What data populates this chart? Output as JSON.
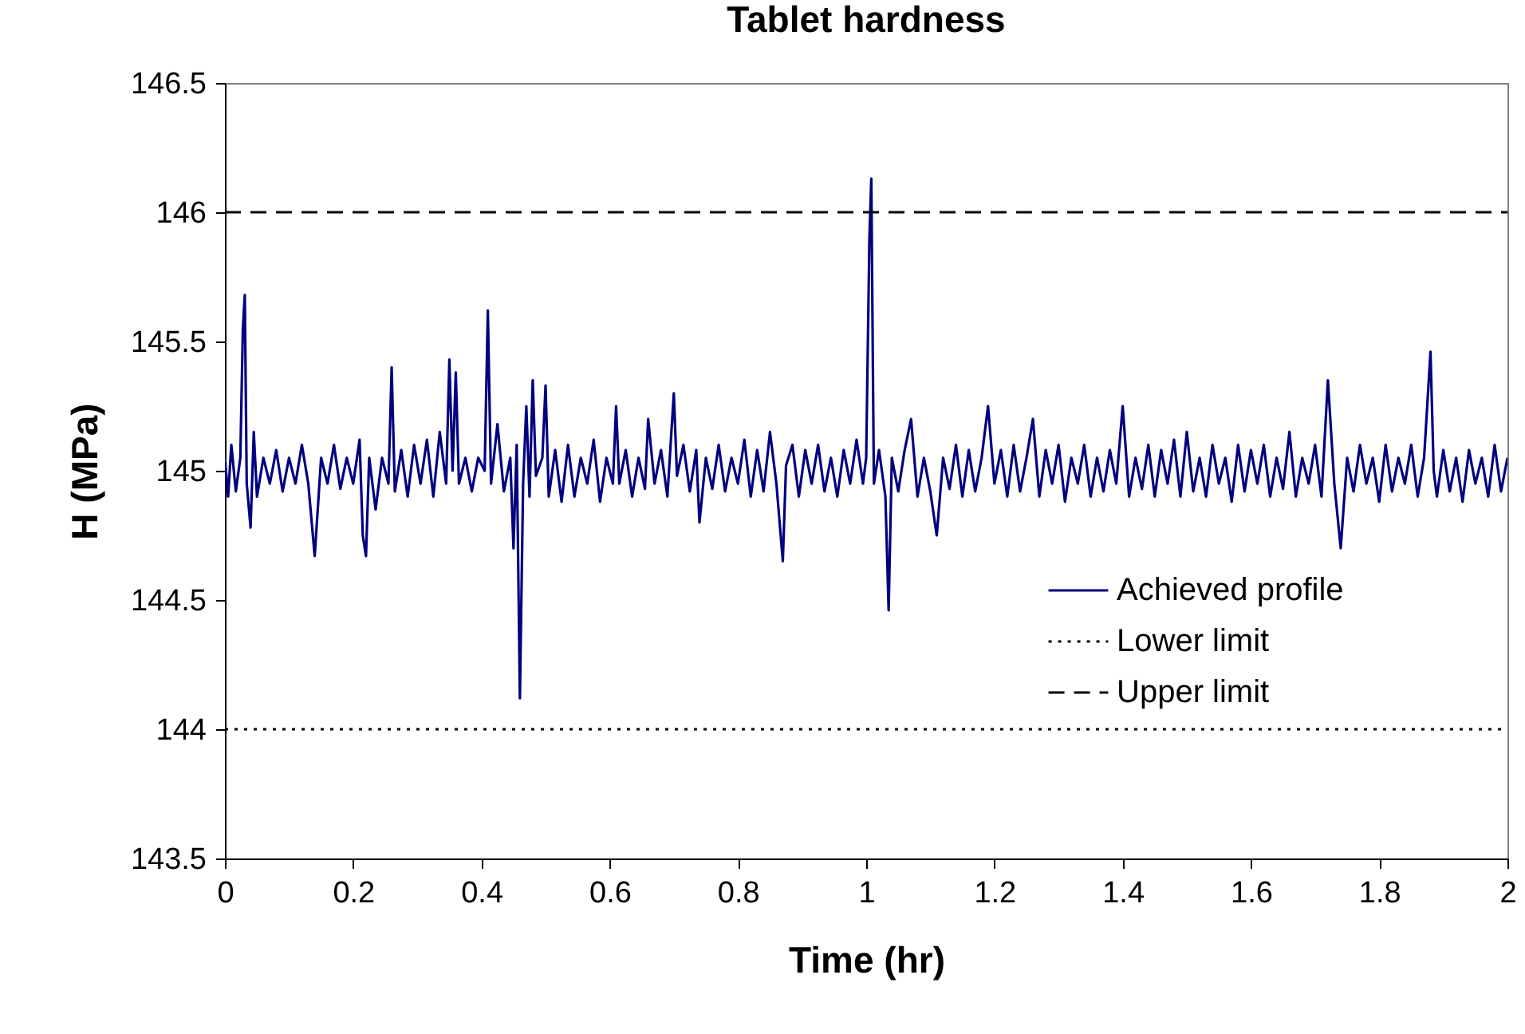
{
  "chart_data": {
    "type": "line",
    "title": "Tablet hardness",
    "xlabel": "Time (hr)",
    "ylabel": "H (MPa)",
    "xlim": [
      0,
      2
    ],
    "xticks": [
      0,
      0.2,
      0.4,
      0.6,
      0.8,
      1,
      1.2,
      1.4,
      1.6,
      1.8,
      2
    ],
    "ylim": [
      143.5,
      146.5
    ],
    "yticks": [
      143.5,
      144,
      144.5,
      145,
      145.5,
      146,
      146.5
    ],
    "grid": false,
    "legend": "right",
    "series": [
      {
        "name": "Achieved profile",
        "color": "#000080",
        "line_style": "solid",
        "x": [
          0,
          0.005,
          0.01,
          0.017,
          0.024,
          0.028,
          0.031,
          0.034,
          0.04,
          0.045,
          0.05,
          0.06,
          0.07,
          0.08,
          0.09,
          0.1,
          0.11,
          0.12,
          0.13,
          0.14,
          0.15,
          0.16,
          0.17,
          0.18,
          0.19,
          0.2,
          0.21,
          0.215,
          0.22,
          0.225,
          0.235,
          0.245,
          0.255,
          0.26,
          0.265,
          0.275,
          0.285,
          0.295,
          0.305,
          0.315,
          0.325,
          0.335,
          0.345,
          0.35,
          0.355,
          0.36,
          0.365,
          0.375,
          0.385,
          0.395,
          0.405,
          0.41,
          0.415,
          0.425,
          0.435,
          0.445,
          0.45,
          0.455,
          0.46,
          0.465,
          0.47,
          0.475,
          0.48,
          0.485,
          0.495,
          0.5,
          0.505,
          0.515,
          0.525,
          0.535,
          0.545,
          0.555,
          0.565,
          0.575,
          0.585,
          0.595,
          0.605,
          0.61,
          0.615,
          0.625,
          0.635,
          0.645,
          0.655,
          0.66,
          0.67,
          0.68,
          0.69,
          0.7,
          0.705,
          0.715,
          0.725,
          0.735,
          0.74,
          0.75,
          0.76,
          0.77,
          0.78,
          0.79,
          0.8,
          0.81,
          0.82,
          0.83,
          0.84,
          0.85,
          0.86,
          0.87,
          0.875,
          0.885,
          0.895,
          0.905,
          0.915,
          0.925,
          0.935,
          0.945,
          0.955,
          0.965,
          0.975,
          0.985,
          0.995,
          1.0,
          1.005,
          1.008,
          1.012,
          1.02,
          1.03,
          1.035,
          1.04,
          1.05,
          1.06,
          1.07,
          1.08,
          1.09,
          1.1,
          1.11,
          1.12,
          1.13,
          1.14,
          1.15,
          1.16,
          1.17,
          1.18,
          1.19,
          1.2,
          1.21,
          1.22,
          1.23,
          1.24,
          1.25,
          1.26,
          1.27,
          1.28,
          1.29,
          1.3,
          1.31,
          1.32,
          1.33,
          1.34,
          1.35,
          1.36,
          1.37,
          1.38,
          1.39,
          1.4,
          1.41,
          1.42,
          1.43,
          1.44,
          1.45,
          1.46,
          1.47,
          1.48,
          1.49,
          1.5,
          1.51,
          1.52,
          1.53,
          1.54,
          1.55,
          1.56,
          1.57,
          1.58,
          1.59,
          1.6,
          1.61,
          1.62,
          1.63,
          1.64,
          1.65,
          1.66,
          1.67,
          1.68,
          1.69,
          1.7,
          1.71,
          1.72,
          1.73,
          1.74,
          1.75,
          1.76,
          1.77,
          1.78,
          1.79,
          1.8,
          1.81,
          1.82,
          1.83,
          1.84,
          1.85,
          1.86,
          1.87,
          1.88,
          1.885,
          1.89,
          1.9,
          1.91,
          1.92,
          1.93,
          1.94,
          1.95,
          1.96,
          1.97,
          1.98,
          1.99,
          2.0
        ],
        "values": [
          145.05,
          144.9,
          145.1,
          144.92,
          145.05,
          145.55,
          145.68,
          144.95,
          144.78,
          145.15,
          144.9,
          145.05,
          144.95,
          145.08,
          144.92,
          145.05,
          144.95,
          145.1,
          144.95,
          144.67,
          145.05,
          144.95,
          145.1,
          144.93,
          145.05,
          144.95,
          145.12,
          144.75,
          144.67,
          145.05,
          144.85,
          145.05,
          144.95,
          145.4,
          144.92,
          145.08,
          144.9,
          145.1,
          144.95,
          145.12,
          144.9,
          145.15,
          144.95,
          145.43,
          145.0,
          145.38,
          144.95,
          145.05,
          144.92,
          145.05,
          145.0,
          145.62,
          144.95,
          145.18,
          144.92,
          145.05,
          144.7,
          145.1,
          144.12,
          144.95,
          145.25,
          144.9,
          145.35,
          144.98,
          145.05,
          145.33,
          144.9,
          145.08,
          144.88,
          145.1,
          144.9,
          145.05,
          144.95,
          145.12,
          144.88,
          145.05,
          144.95,
          145.25,
          144.95,
          145.08,
          144.9,
          145.05,
          144.93,
          145.2,
          144.95,
          145.08,
          144.9,
          145.3,
          144.98,
          145.1,
          144.92,
          145.08,
          144.8,
          145.05,
          144.93,
          145.1,
          144.92,
          145.05,
          144.95,
          145.12,
          144.9,
          145.08,
          144.92,
          145.15,
          144.95,
          144.65,
          145.02,
          145.1,
          144.9,
          145.08,
          144.95,
          145.1,
          144.92,
          145.05,
          144.9,
          145.08,
          144.95,
          145.12,
          144.95,
          145.05,
          145.9,
          146.13,
          144.95,
          145.08,
          144.9,
          144.46,
          145.05,
          144.92,
          145.08,
          145.2,
          144.9,
          145.05,
          144.92,
          144.75,
          145.05,
          144.93,
          145.1,
          144.9,
          145.08,
          144.92,
          145.05,
          145.25,
          144.95,
          145.08,
          144.9,
          145.1,
          144.92,
          145.05,
          145.2,
          144.9,
          145.08,
          144.95,
          145.1,
          144.88,
          145.05,
          144.95,
          145.1,
          144.9,
          145.05,
          144.92,
          145.08,
          144.95,
          145.25,
          144.9,
          145.05,
          144.93,
          145.1,
          144.9,
          145.08,
          144.95,
          145.12,
          144.9,
          145.15,
          144.92,
          145.05,
          144.9,
          145.1,
          144.95,
          145.05,
          144.88,
          145.1,
          144.92,
          145.08,
          144.95,
          145.1,
          144.9,
          145.05,
          144.93,
          145.15,
          144.9,
          145.05,
          144.95,
          145.1,
          144.9,
          145.35,
          144.95,
          144.7,
          145.05,
          144.92,
          145.1,
          144.95,
          145.05,
          144.88,
          145.1,
          144.92,
          145.05,
          144.95,
          145.1,
          144.9,
          145.05,
          145.46,
          145.0,
          144.9,
          145.08,
          144.92,
          145.05,
          144.88,
          145.08,
          144.95,
          145.05,
          144.9,
          145.1,
          144.92,
          145.05
        ]
      },
      {
        "name": "Lower limit",
        "color": "#000000",
        "line_style": "dotted",
        "x": [
          0,
          2
        ],
        "values": [
          144,
          144
        ]
      },
      {
        "name": "Upper limit",
        "color": "#000000",
        "line_style": "dashed",
        "x": [
          0,
          2
        ],
        "values": [
          146,
          146
        ]
      }
    ]
  }
}
